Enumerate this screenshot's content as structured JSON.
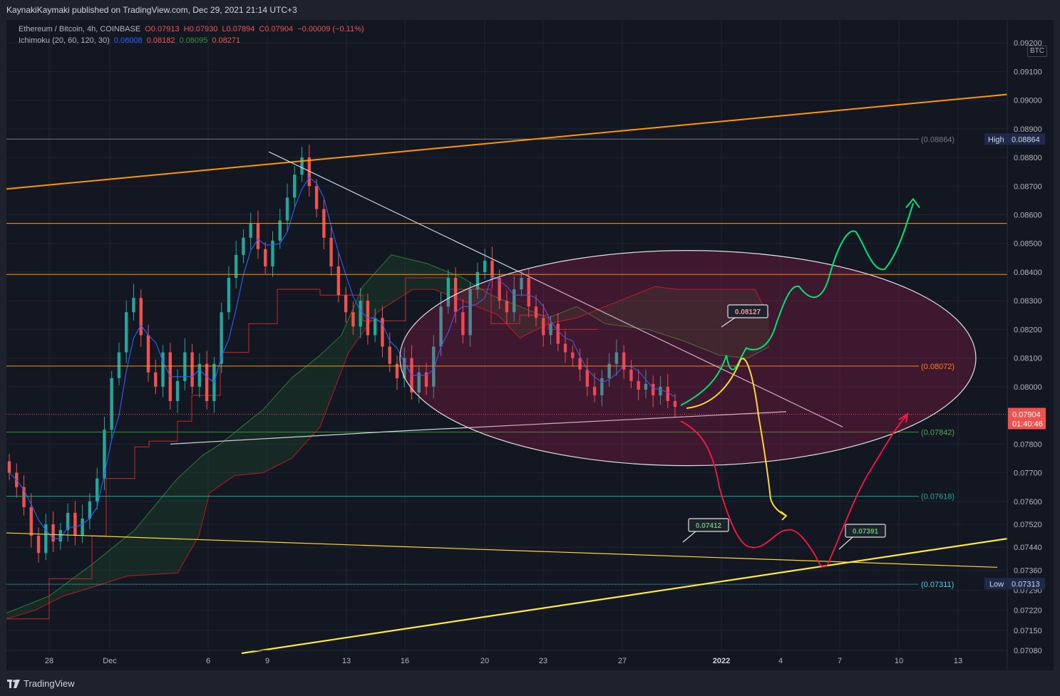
{
  "header": {
    "publish_line": "KaynakiKaymaki published on TradingView.com, Dec 29, 2021 21:14 UTC+3"
  },
  "footer": {
    "brand": "TradingView"
  },
  "legend": {
    "symbol": "Ethereum / Bitcoin, 4h, COINBASE",
    "open": "O0.07913",
    "high": "H0.07930",
    "low": "L0.07894",
    "close": "C0.07904",
    "change": "−0.00009 (−0.11%)",
    "indicator": "Ichimoku (20, 60, 120, 30)",
    "ind_values": [
      "0.08008",
      "0.08182",
      "0.08095",
      "0.08271"
    ]
  },
  "currency_badge": "BTC",
  "colors": {
    "background": "#131722",
    "up": "#26a69a",
    "down": "#ef5350",
    "tenkan": "#2962ff",
    "kijun": "#b71c1c",
    "orange_line": "#ff9800",
    "yellow_line": "#ffeb3b",
    "green_path": "#00e676",
    "red_path": "#ff1744"
  },
  "chart_data": {
    "type": "candlestick",
    "symbol": "ETH/BTC",
    "timeframe": "4h",
    "ylim": [
      0.0708,
      0.0926
    ],
    "y_ticks": [
      "0.09200",
      "0.09100",
      "0.09000",
      "0.08900",
      "0.08800",
      "0.08700",
      "0.08600",
      "0.08500",
      "0.08400",
      "0.08300",
      "0.08200",
      "0.08100",
      "0.08000",
      "0.07800",
      "0.07700",
      "0.07600",
      "0.07520",
      "0.07440",
      "0.07360",
      "0.07290",
      "0.07220",
      "0.07150",
      "0.07080"
    ],
    "x_ticks": [
      "28",
      "Dec",
      "6",
      "9",
      "13",
      "16",
      "20",
      "23",
      "27",
      "2022",
      "4",
      "7",
      "10",
      "13"
    ],
    "high_label": "High",
    "high_value": "0.08864",
    "low_label": "Low",
    "low_value": "0.07313",
    "last_price": "0.07904",
    "countdown": "01:40:46",
    "level_labels": [
      {
        "text": "(0.08864)",
        "value": 0.08864
      },
      {
        "text": "(0.08072)",
        "value": 0.08072
      },
      {
        "text": "(0.07842)",
        "value": 0.07842
      },
      {
        "text": "(0.07618)",
        "value": 0.07618
      },
      {
        "text": "(0.07311)",
        "value": 0.07311
      }
    ],
    "horizontal_levels": [
      0.0857,
      0.08392,
      0.08072,
      0.07842,
      0.07618,
      0.07311
    ],
    "callouts": [
      "0.08127",
      "0.07412",
      "0.07391"
    ],
    "candles_close_path": [
      0.077,
      0.0765,
      0.0758,
      0.0748,
      0.0742,
      0.0752,
      0.0746,
      0.075,
      0.0756,
      0.0748,
      0.0754,
      0.076,
      0.0768,
      0.0785,
      0.0803,
      0.0812,
      0.0826,
      0.0831,
      0.0818,
      0.0805,
      0.08,
      0.0812,
      0.0795,
      0.0802,
      0.0812,
      0.08,
      0.0808,
      0.0795,
      0.0808,
      0.0826,
      0.0838,
      0.0846,
      0.0852,
      0.0857,
      0.0848,
      0.0842,
      0.0851,
      0.0858,
      0.0866,
      0.0874,
      0.088,
      0.087,
      0.0862,
      0.0852,
      0.0842,
      0.0832,
      0.0826,
      0.0821,
      0.083,
      0.0818,
      0.0824,
      0.0814,
      0.0808,
      0.0803,
      0.081,
      0.0798,
      0.0805,
      0.08,
      0.0814,
      0.0828,
      0.0838,
      0.0826,
      0.0818,
      0.0834,
      0.084,
      0.0844,
      0.0838,
      0.083,
      0.0826,
      0.0834,
      0.0838,
      0.0828,
      0.0824,
      0.0818,
      0.0822,
      0.0815,
      0.0812,
      0.081,
      0.0806,
      0.08,
      0.0797,
      0.0803,
      0.0808,
      0.0812,
      0.0806,
      0.0802,
      0.0799,
      0.0801,
      0.0797,
      0.08,
      0.0795,
      0.0793
    ]
  }
}
